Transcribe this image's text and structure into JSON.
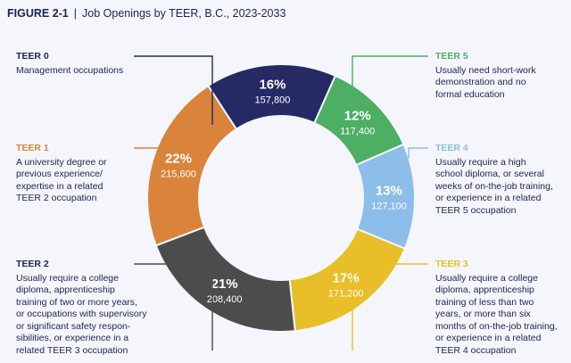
{
  "header": {
    "figure_label": "FIGURE 2-1",
    "separator": "|",
    "title": "Job Openings by TEER, B.C., 2023-2033"
  },
  "chart_data": {
    "type": "pie",
    "subtype": "donut",
    "title": "Job Openings by TEER, B.C., 2023-2033",
    "slices": [
      {
        "name": "TEER 0",
        "percent_label": "16%",
        "value": 157800,
        "value_label": "157,800",
        "color": "#252a64",
        "description": "Management occupations"
      },
      {
        "name": "TEER 5",
        "percent_label": "12%",
        "value": 117400,
        "value_label": "117,400",
        "color": "#4caf64",
        "description": "Usually need short-work\ndemonstration and no\nformal education"
      },
      {
        "name": "TEER 4",
        "percent_label": "13%",
        "value": 127100,
        "value_label": "127,100",
        "color": "#8dbde9",
        "description": "Usually require a high\nschool diploma, or several\nweeks of on-the-job training,\nor experience in a related\nTEER 5 occupation"
      },
      {
        "name": "TEER 3",
        "percent_label": "17%",
        "value": 171200,
        "value_label": "171,200",
        "color": "#e8bf28",
        "description": "Usually require a college\ndiploma, apprenticeship\ntraining of less than two\nyears, or more than six\nmonths of on-the-job training,\nor experience in a related\nTEER 4 occupation"
      },
      {
        "name": "TEER 2",
        "percent_label": "21%",
        "value": 208400,
        "value_label": "208,400",
        "color": "#4c4c4c",
        "description": "Usually require a college\ndiploma, apprenticeship\ntraining of two or more years,\nor occupations with supervisory\nor significant safety respon-\nsibilities, or experience in a\nrelated TEER 3 occupation"
      },
      {
        "name": "TEER 1",
        "percent_label": "22%",
        "value": 215600,
        "value_label": "215,600",
        "color": "#d9843a",
        "description": "A university degree or\nprevious experience/\nexpertise in a related\nTEER 2 occupation"
      }
    ]
  }
}
